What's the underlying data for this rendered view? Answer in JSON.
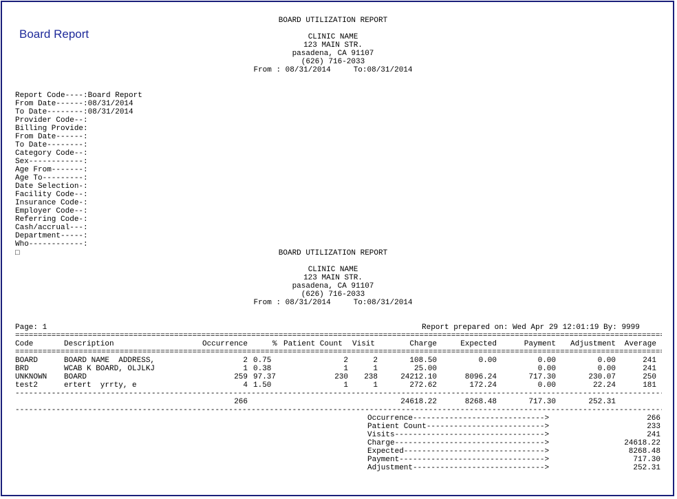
{
  "app_title": "Board Report",
  "report": {
    "title": "BOARD UTILIZATION REPORT",
    "clinic_name": "CLINIC NAME",
    "address": "123 MAIN STR.",
    "city": "pasadena, CA 91107",
    "phone": "(626) 716-2033",
    "date_range": "From : 08/31/2014     To:08/31/2014"
  },
  "criteria": [
    "Report Code----:Board Report",
    "From Date------:08/31/2014",
    "To Date--------:08/31/2014",
    "Provider Code--:",
    "Billing Provide:",
    "From Date------:",
    "To Date--------:",
    "Category Code--:",
    "Sex------------:",
    "Age From-------:",
    "Age To---------:",
    "Date Selection-:",
    "Facility Code--:",
    "Insurance Code-:",
    "Employer Code--:",
    "Referring Code-:",
    "Cash/accrual---:",
    "Department-----:",
    "Who------------:"
  ],
  "page_label": "Page: 1",
  "prepared_on": "Report prepared on: Wed Apr 29 12:01:19 By: 9999",
  "double_rule": "===================================================================================================================================================",
  "single_rule": "---------------------------------------------------------------------------------------------------------------------------------------------------",
  "columns": {
    "code": "Code",
    "description": "Description",
    "occurrence": "Occurrence",
    "pct": "%",
    "patient_count": "Patient Count",
    "visit": "Visit",
    "charge": "Charge",
    "expected": "Expected",
    "payment": "Payment",
    "adjustment": "Adjustment",
    "average": "Average"
  },
  "rows": [
    {
      "code": "BOARD",
      "description": "BOARD NAME  ADDRESS,",
      "occurrence": "2",
      "pct": "0.75",
      "patient_count": "2",
      "visit": "2",
      "charge": "108.50",
      "expected": "0.00",
      "payment": "0.00",
      "adjustment": "0.00",
      "average": "241"
    },
    {
      "code": "BRD",
      "description": "WCAB K BOARD, OLJLKJ",
      "occurrence": "1",
      "pct": "0.38",
      "patient_count": "1",
      "visit": "1",
      "charge": "25.00",
      "expected": "",
      "payment": "0.00",
      "adjustment": "0.00",
      "average": "241"
    },
    {
      "code": "UNKNOWN",
      "description": "BOARD",
      "occurrence": "259",
      "pct": "97.37",
      "patient_count": "230",
      "visit": "238",
      "charge": "24212.10",
      "expected": "8096.24",
      "payment": "717.30",
      "adjustment": "230.07",
      "average": "250"
    },
    {
      "code": "test2",
      "description": "ertert  yrrty, e",
      "occurrence": "4",
      "pct": "1.50",
      "patient_count": "1",
      "visit": "1",
      "charge": "272.62",
      "expected": "172.24",
      "payment": "0.00",
      "adjustment": "22.24",
      "average": "181"
    }
  ],
  "totals": {
    "occurrence": "266",
    "charge": "24618.22",
    "expected": "8268.48",
    "payment": "717.30",
    "adjustment": "252.31"
  },
  "summary": [
    {
      "label": "Occurrence----------------------------->",
      "value": "266"
    },
    {
      "label": "Patient Count-------------------------->",
      "value": "233"
    },
    {
      "label": "Visits--------------------------------->",
      "value": "241"
    },
    {
      "label": "Charge--------------------------------->",
      "value": "24618.22"
    },
    {
      "label": "Expected------------------------------->",
      "value": "8268.48"
    },
    {
      "label": "Payment-------------------------------->",
      "value": "717.30"
    },
    {
      "label": "Adjustment----------------------------->",
      "value": "252.31"
    }
  ],
  "page_break_glyph": "□"
}
